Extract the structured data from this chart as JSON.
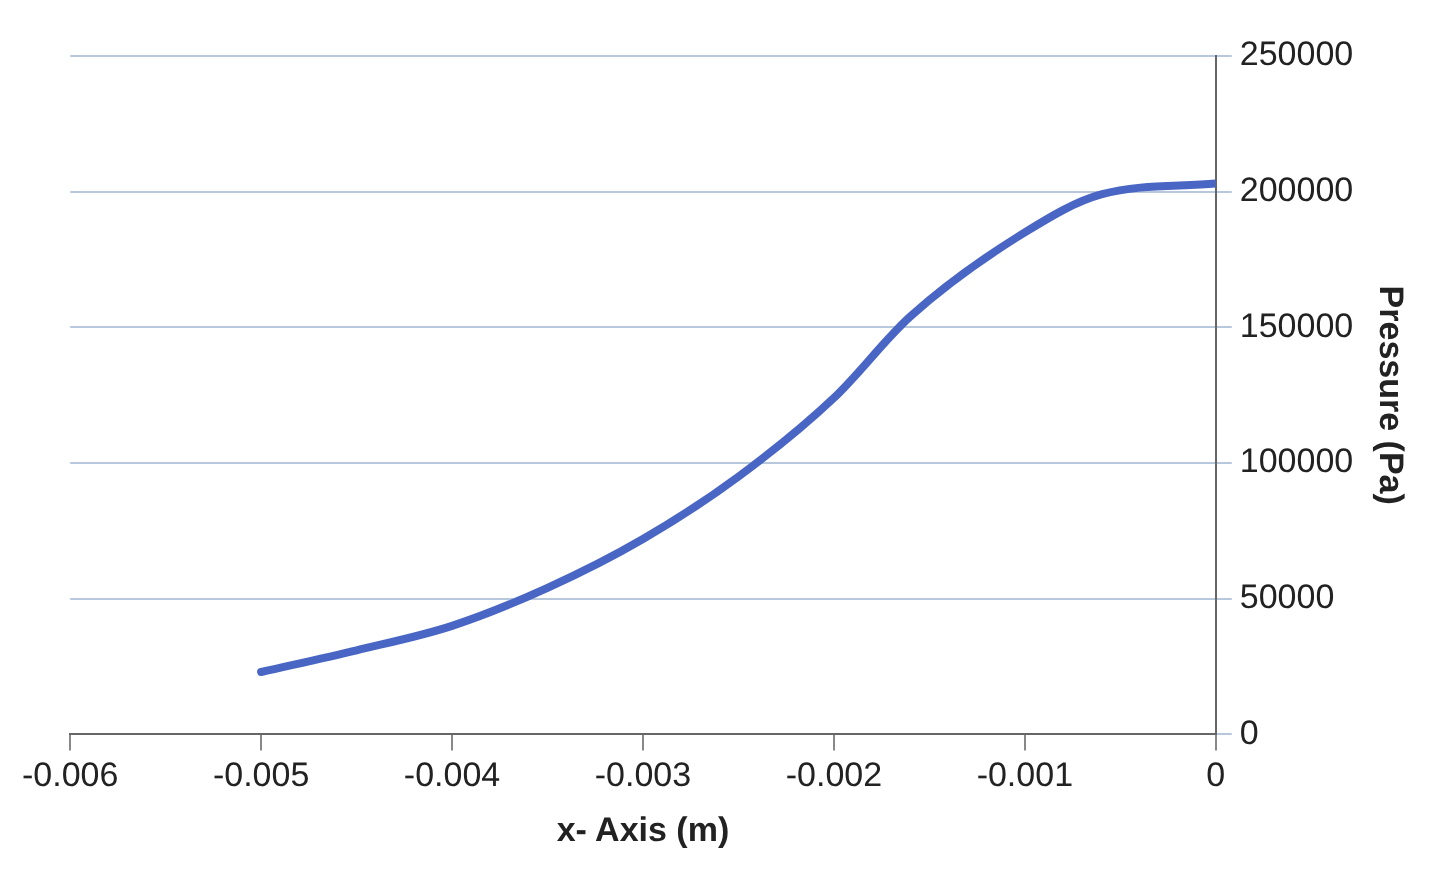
{
  "chart_data": {
    "type": "line",
    "xlabel": "x- Axis (m)",
    "ylabel": "Pressure (Pa)",
    "x": [
      -0.005,
      -0.0045,
      -0.004,
      -0.0035,
      -0.003,
      -0.0025,
      -0.002,
      -0.0016,
      -0.001,
      -0.0006,
      0
    ],
    "series": [
      {
        "color": "#4a66c4",
        "values": [
          23000,
          31000,
          40000,
          54000,
          72000,
          95000,
          124000,
          154000,
          185000,
          199000,
          203000
        ]
      }
    ],
    "xlim": [
      -0.006,
      0
    ],
    "xticks": [
      -0.006,
      -0.005,
      -0.004,
      -0.003,
      -0.002,
      -0.001,
      0
    ],
    "ylim": [
      0,
      250000
    ],
    "yticks": [
      0,
      50000,
      100000,
      150000,
      200000,
      250000
    ],
    "grid": "y",
    "legend": false,
    "marker": "none",
    "line_style": "solid"
  }
}
